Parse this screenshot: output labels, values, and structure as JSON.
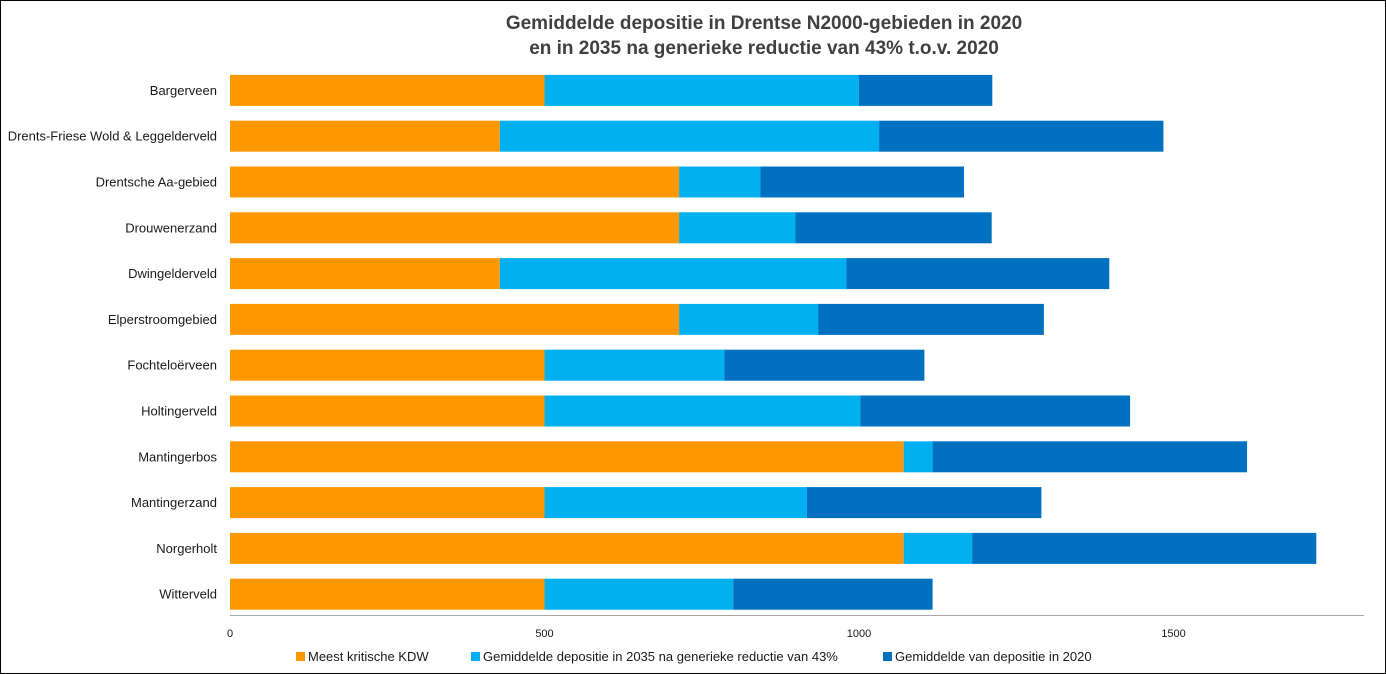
{
  "chart_data": {
    "type": "bar",
    "orientation": "horizontal",
    "stacked": true,
    "title": [
      "Gemiddelde depositie in Drentse N2000-gebieden in 2020",
      "en in 2035 na generieke reductie van 43% t.o.v. 2020"
    ],
    "categories": [
      "Bargerveen",
      "Drents-Friese Wold & Leggelderveld",
      "Drentsche Aa-gebied",
      "Drouwenerzand",
      "Dwingelderveld",
      "Elperstroomgebied",
      "Fochteloërveen",
      "Holtingerveld",
      "Mantingerbos",
      "Mantingerzand",
      "Norgerholt",
      "Witterveld"
    ],
    "series": [
      {
        "name": "Meest kritische KDW",
        "color": "#FF9800",
        "values": [
          500,
          429,
          714,
          714,
          429,
          714,
          500,
          500,
          1071,
          500,
          1071,
          500
        ]
      },
      {
        "name": "Gemiddelde depositie in 2035 na generieke reductie van 43%",
        "color": "#00B0F0",
        "values": [
          500,
          603,
          129,
          185,
          551,
          221,
          286,
          502,
          46,
          417,
          109,
          300
        ]
      },
      {
        "name": "Gemiddelde van depositie in 2020",
        "color": "#0070C0",
        "values": [
          212,
          452,
          324,
          312,
          418,
          359,
          318,
          429,
          500,
          373,
          547,
          317
        ]
      }
    ],
    "xlim": [
      0,
      1800
    ],
    "xticks": [
      0,
      500,
      1000,
      1500
    ],
    "grid": false,
    "legend_position": "bottom",
    "xlabel": "",
    "ylabel": ""
  }
}
